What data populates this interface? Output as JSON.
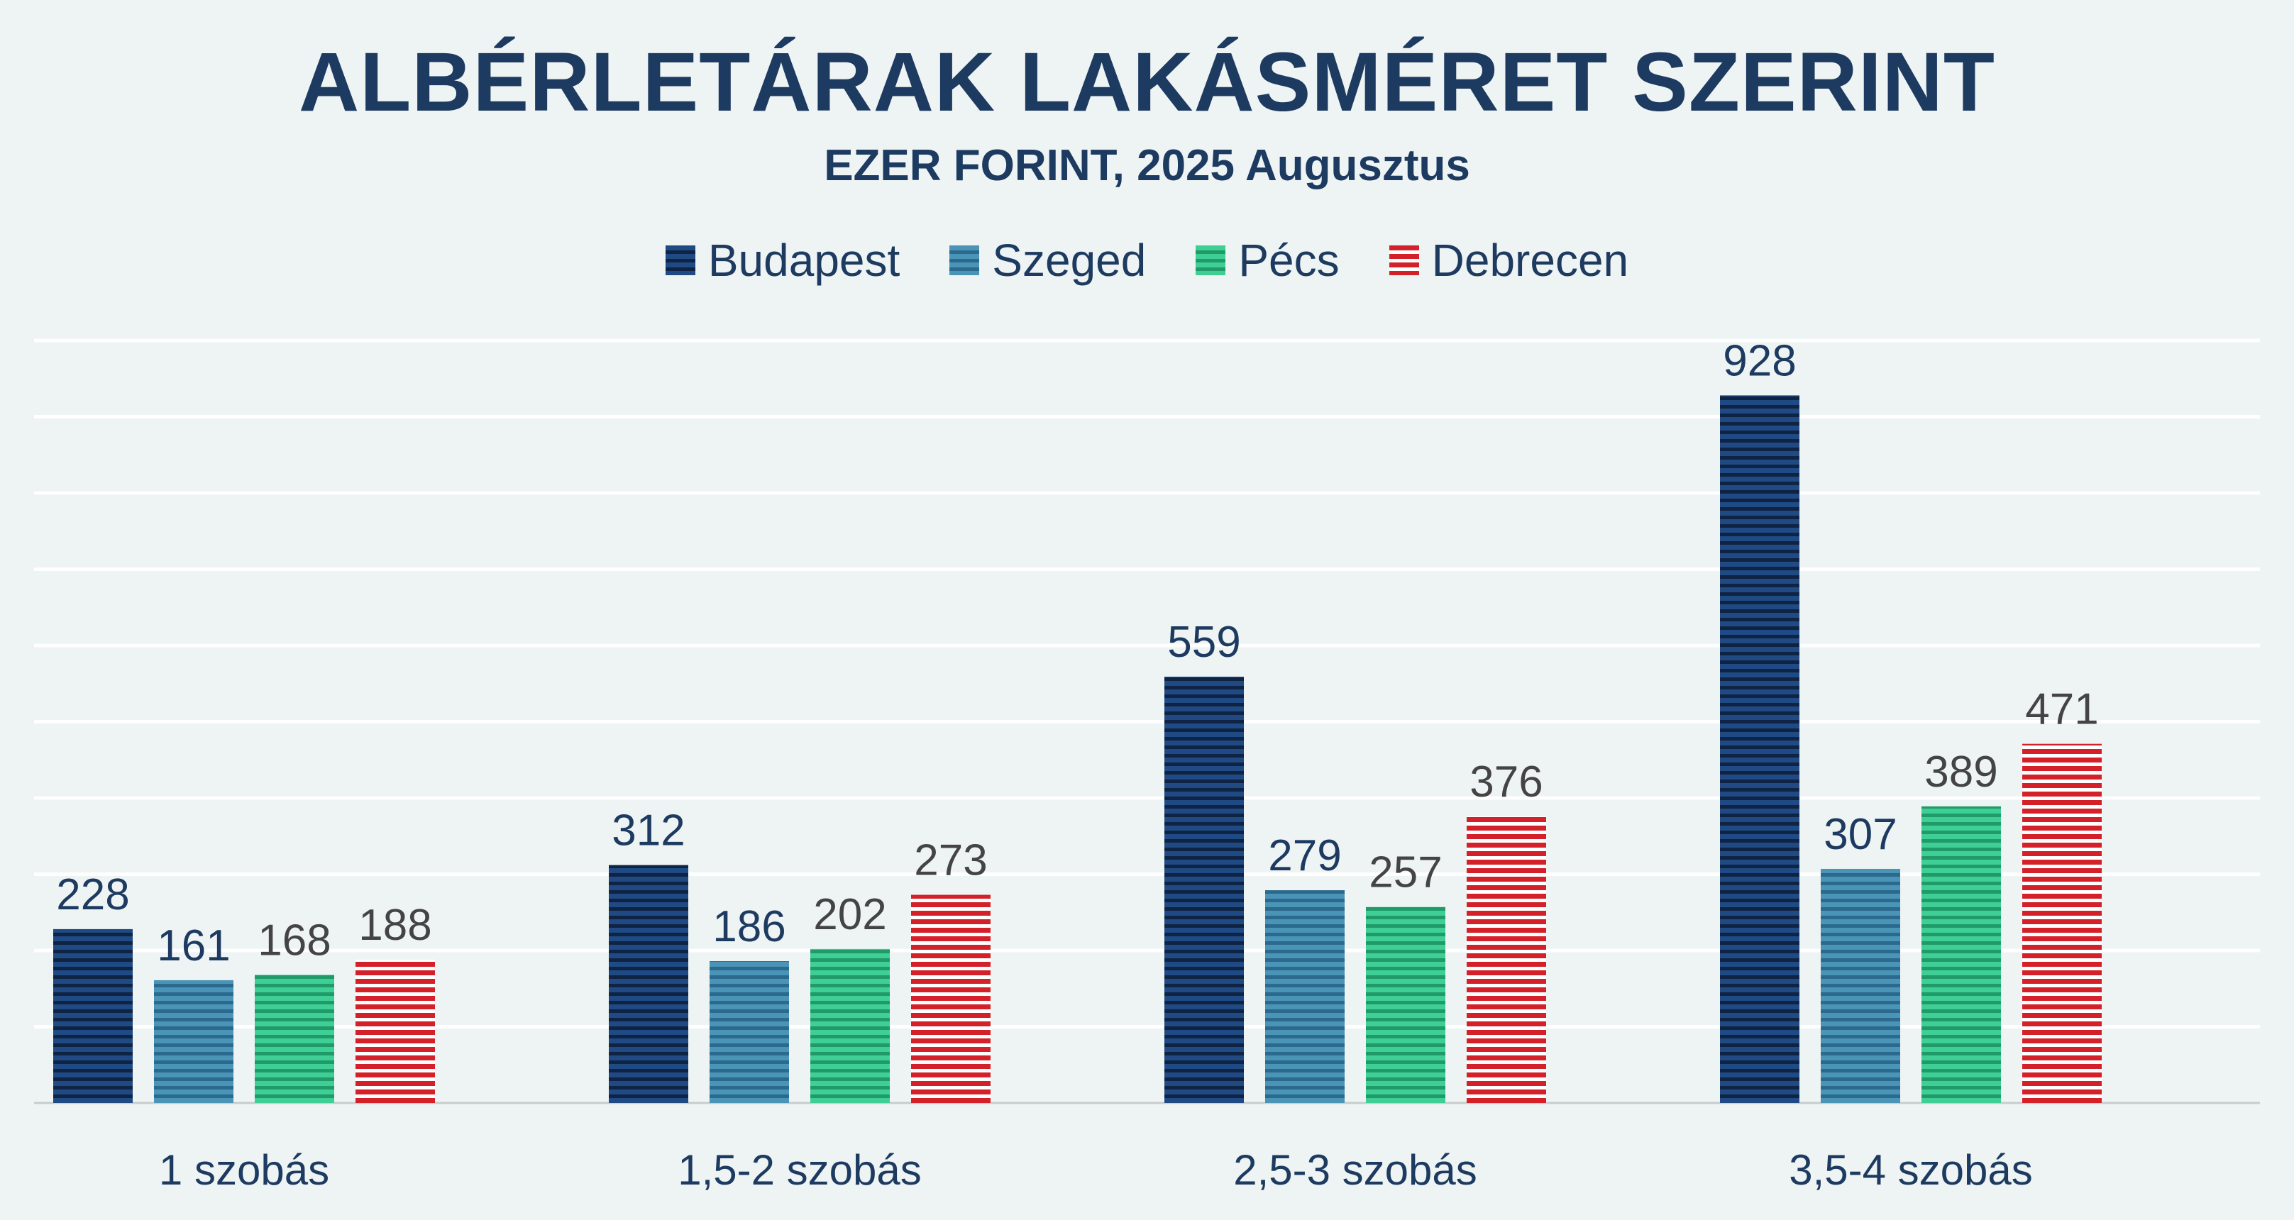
{
  "chart_data": {
    "type": "bar",
    "title": "ALBÉRLETÁRAK LAKÁSMÉRET SZERINT",
    "subtitle": "EZER FORINT, 2025 Augusztus",
    "categories": [
      "1 szobás",
      "1,5-2 szobás",
      "2,5-3 szobás",
      "3,5-4 szobás"
    ],
    "series": [
      {
        "name": "Budapest",
        "values": [
          228,
          312,
          559,
          928
        ],
        "color": "#1f4a84",
        "stripe": "#0f2444",
        "label_color": "#1d3a60"
      },
      {
        "name": "Szeged",
        "values": [
          161,
          186,
          279,
          307
        ],
        "color": "#4a94b8",
        "stripe": "#2b6a8c",
        "label_color": "#1d3a60"
      },
      {
        "name": "Pécs",
        "values": [
          168,
          202,
          257,
          389
        ],
        "color": "#3fcf95",
        "stripe": "#1f9a68",
        "label_color": "#444444"
      },
      {
        "name": "Debrecen",
        "values": [
          188,
          273,
          376,
          471
        ],
        "color": "#d42028",
        "stripe": "#ffffff",
        "label_color": "#444444"
      }
    ],
    "ylim": [
      0,
      1000
    ],
    "grid": true,
    "legend": "top-center",
    "xlabel": "",
    "ylabel": ""
  }
}
